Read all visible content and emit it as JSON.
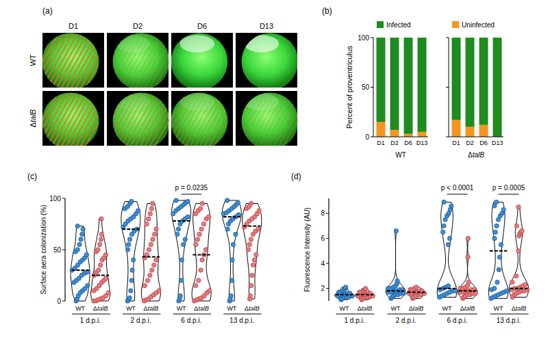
{
  "image_panel": {
    "panel_label": "(a)",
    "columns": [
      "D1",
      "D2",
      "D6",
      "D13"
    ],
    "rows": [
      "WT",
      "ΔtalB"
    ]
  },
  "chart_data": [
    {
      "panel_label": "(b)",
      "type": "bar",
      "stacked": true,
      "ylabel": "Percent of proventriculus",
      "categories": [
        "D1",
        "D2",
        "D6",
        "D13"
      ],
      "facets": [
        "WT",
        "ΔtalB"
      ],
      "series": [
        {
          "name": "Infected",
          "color": "#1e8c1e",
          "values": [
            [
              85,
              93,
              97,
              95
            ],
            [
              83,
              90,
              88,
              100
            ]
          ]
        },
        {
          "name": "Uninfected",
          "color": "#f7941d",
          "values": [
            [
              15,
              7,
              3,
              5
            ],
            [
              17,
              10,
              12,
              0
            ]
          ]
        }
      ],
      "ylim": [
        0,
        100
      ],
      "yticks": [
        0,
        50,
        100
      ],
      "legend": "top"
    },
    {
      "panel_label": "(c)",
      "type": "violin",
      "ylabel": "Surface aera colonization (%)",
      "categories": [
        "1 d.p.i.",
        "2 d.p.i.",
        "6 d.p.i.",
        "13 d.p.i."
      ],
      "series": [
        {
          "name": "WT",
          "color": "#3a8fd9",
          "values": [
            [
              0,
              2,
              5,
              8,
              10,
              12,
              15,
              18,
              20,
              22,
              25,
              27,
              28,
              30,
              32,
              35,
              38,
              40,
              42,
              45,
              48,
              50,
              55,
              60,
              65,
              70,
              73
            ],
            [
              0,
              1,
              3,
              10,
              20,
              30,
              40,
              50,
              55,
              60,
              65,
              68,
              70,
              72,
              75,
              78,
              80,
              82,
              85,
              88,
              90,
              92,
              95,
              97
            ],
            [
              0,
              2,
              5,
              20,
              40,
              55,
              60,
              65,
              70,
              75,
              78,
              80,
              82,
              85,
              88,
              90,
              92,
              94,
              96,
              97,
              98
            ],
            [
              0,
              2,
              5,
              20,
              40,
              55,
              65,
              70,
              75,
              78,
              80,
              82,
              84,
              85,
              86,
              88,
              90,
              92,
              94,
              96,
              98
            ]
          ],
          "medians": [
            30,
            70,
            78,
            82
          ]
        },
        {
          "name": "ΔtalB",
          "color": "#e97a7c",
          "values": [
            [
              0,
              0,
              1,
              2,
              3,
              5,
              8,
              10,
              12,
              15,
              18,
              20,
              22,
              25,
              28,
              30,
              35,
              40,
              42,
              45,
              48,
              50,
              55,
              60,
              65,
              80
            ],
            [
              0,
              1,
              2,
              4,
              6,
              8,
              10,
              15,
              20,
              25,
              30,
              35,
              40,
              42,
              45,
              50,
              55,
              60,
              65,
              70,
              75,
              80,
              85,
              90,
              95
            ],
            [
              0,
              1,
              2,
              3,
              5,
              8,
              10,
              15,
              20,
              30,
              40,
              45,
              50,
              55,
              60,
              65,
              70,
              75,
              80,
              82,
              85,
              88,
              90,
              95
            ],
            [
              2,
              5,
              15,
              25,
              35,
              40,
              45,
              50,
              55,
              60,
              65,
              68,
              70,
              72,
              75,
              78,
              80,
              82,
              85,
              88,
              90,
              92,
              95
            ]
          ],
          "medians": [
            25,
            43,
            45,
            73
          ]
        }
      ],
      "ylim": [
        0,
        100
      ],
      "yticks": [
        0,
        50,
        100
      ],
      "annotations": [
        {
          "text": "p = 0.0235",
          "category": "6 d.p.i."
        }
      ]
    },
    {
      "panel_label": "(d)",
      "type": "violin",
      "ylabel": "Fluorescence Intensity (AU)",
      "categories": [
        "1 d.p.i.",
        "2 d.p.i.",
        "6 d.p.i.",
        "13 d.p.i."
      ],
      "series": [
        {
          "name": "WT",
          "color": "#3a8fd9",
          "values": [
            [
              1.1,
              1.2,
              1.2,
              1.3,
              1.3,
              1.4,
              1.4,
              1.4,
              1.5,
              1.5,
              1.5,
              1.6,
              1.6,
              1.7,
              1.7,
              1.8,
              1.9,
              2.0,
              2.1
            ],
            [
              1.2,
              1.3,
              1.4,
              1.5,
              1.5,
              1.6,
              1.6,
              1.7,
              1.7,
              1.8,
              1.8,
              1.9,
              1.9,
              2.0,
              2.0,
              2.1,
              2.2,
              2.4,
              2.6,
              6.6
            ],
            [
              1.3,
              1.4,
              1.5,
              1.6,
              1.7,
              1.8,
              1.8,
              1.9,
              2.0,
              2.1,
              2.2,
              5.5,
              6.0,
              6.5,
              7.0,
              7.5,
              7.8,
              8.0,
              8.3,
              8.6,
              8.9
            ],
            [
              1.2,
              1.3,
              1.4,
              1.5,
              1.6,
              1.7,
              1.8,
              1.9,
              2.0,
              2.5,
              3.5,
              4.5,
              5.5,
              6.0,
              6.5,
              7.0,
              7.5,
              7.8,
              8.0,
              8.3,
              8.6,
              8.9
            ]
          ],
          "medians": [
            1.5,
            1.8,
            2.0,
            5.0
          ]
        },
        {
          "name": "ΔtalB",
          "color": "#e97a7c",
          "values": [
            [
              1.1,
              1.2,
              1.2,
              1.3,
              1.3,
              1.4,
              1.4,
              1.4,
              1.5,
              1.5,
              1.5,
              1.6,
              1.6,
              1.7,
              1.7,
              1.8,
              1.9,
              2.0
            ],
            [
              1.2,
              1.3,
              1.3,
              1.4,
              1.5,
              1.5,
              1.6,
              1.6,
              1.6,
              1.7,
              1.7,
              1.8,
              1.8,
              1.9,
              1.9,
              2.0,
              2.1
            ],
            [
              1.2,
              1.3,
              1.4,
              1.5,
              1.5,
              1.6,
              1.6,
              1.7,
              1.7,
              1.8,
              1.8,
              1.9,
              1.9,
              2.0,
              2.0,
              2.1,
              2.2,
              2.5,
              4.5,
              6.0
            ],
            [
              1.3,
              1.5,
              1.6,
              1.7,
              1.8,
              1.8,
              1.9,
              1.9,
              2.0,
              2.0,
              2.1,
              2.2,
              2.3,
              2.5,
              3.0,
              5.0,
              6.2,
              6.4,
              6.5,
              6.6,
              7.0,
              8.5
            ]
          ],
          "medians": [
            1.5,
            1.7,
            1.8,
            2.0
          ]
        }
      ],
      "ylim": [
        1,
        9.2
      ],
      "yticks": [
        2,
        4,
        6,
        8
      ],
      "annotations": [
        {
          "text": "p < 0.0001",
          "category": "6 d.p.i."
        },
        {
          "text": "p = 0.0005",
          "category": "13 d.p.i."
        }
      ]
    }
  ]
}
